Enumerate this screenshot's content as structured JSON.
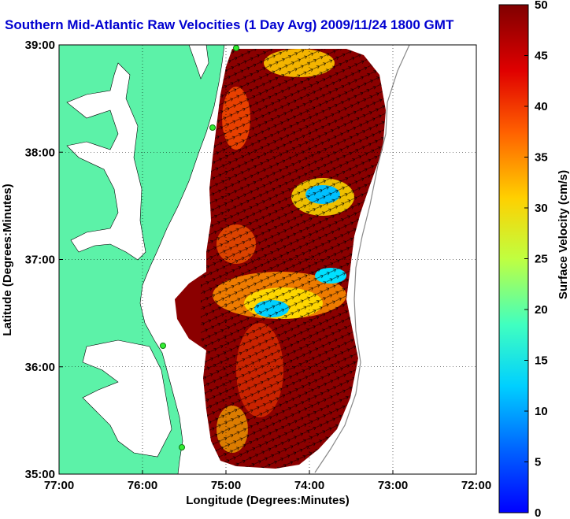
{
  "title": "Southern Mid-Atlantic Raw Velocities (1 Day Avg) 2009/11/24 1800 GMT",
  "xaxis": {
    "label": "Longitude (Degrees:Minutes)",
    "ticks": [
      "77:00",
      "76:00",
      "75:00",
      "74:00",
      "73:00",
      "72:00"
    ],
    "range": [
      -77,
      -72
    ]
  },
  "yaxis": {
    "label": "Latitude (Degrees:Minutes)",
    "ticks": [
      "39:00",
      "38:00",
      "37:00",
      "36:00",
      "35:00"
    ],
    "range": [
      35,
      39
    ]
  },
  "colorbar": {
    "label": "Surface Velocity (cm/s)",
    "ticks": [
      "50",
      "45",
      "40",
      "35",
      "30",
      "25",
      "20",
      "15",
      "10",
      "5",
      "0"
    ],
    "range": [
      0,
      50
    ],
    "colormap": "jet"
  },
  "colors": {
    "land": "#5cf2a8",
    "water": "#ffffff",
    "title": "#0000d0",
    "station": "#33ee33"
  },
  "grid": "dotted"
}
